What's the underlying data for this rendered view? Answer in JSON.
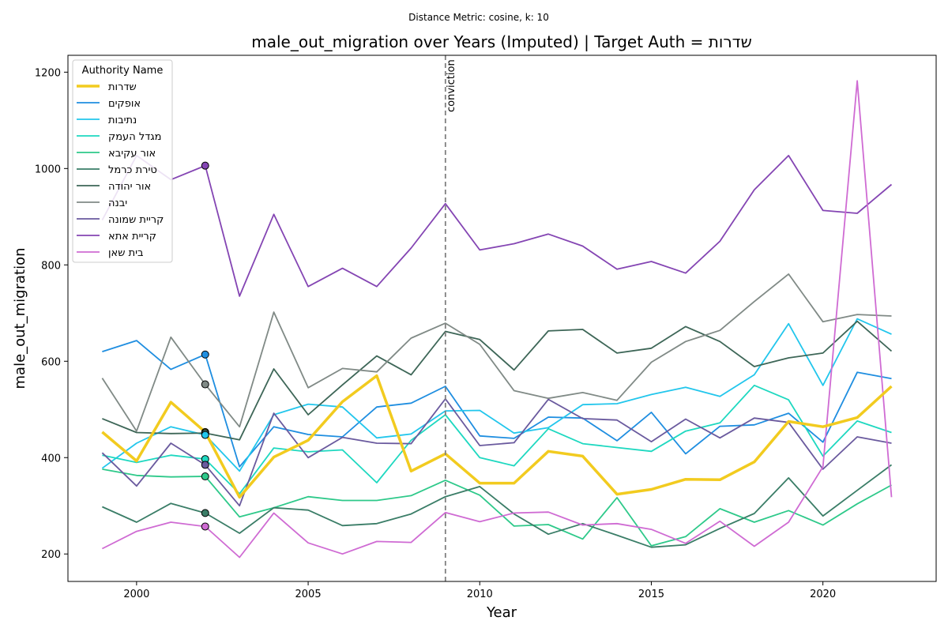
{
  "chart_data": {
    "type": "line",
    "suptitle": "Distance Metric: cosine, k: 10",
    "title": "male_out_migration over Years (Imputed) | Target Auth = שדרות",
    "xlabel": "Year",
    "ylabel": "male_out_migration",
    "xlim": [
      1998,
      2023.3
    ],
    "ylim": [
      143,
      1235
    ],
    "xticks": [
      2000,
      2005,
      2010,
      2015,
      2020
    ],
    "yticks": [
      200,
      400,
      600,
      800,
      1000,
      1200
    ],
    "grid": false,
    "legend": {
      "title": "Authority Name",
      "placement": "top-left"
    },
    "x": [
      1999,
      2000,
      2001,
      2002,
      2003,
      2004,
      2005,
      2006,
      2007,
      2008,
      2009,
      2010,
      2011,
      2012,
      2013,
      2014,
      2015,
      2016,
      2017,
      2018,
      2019,
      2020,
      2021,
      2022
    ],
    "series": [
      {
        "name": "שדרות",
        "color": "#f2cb1f",
        "width": 3.5,
        "target": true,
        "values": [
          453,
          393,
          515,
          453,
          318,
          401,
          436,
          516,
          570,
          372,
          408,
          347,
          347,
          413,
          403,
          324,
          334,
          355,
          354,
          391,
          475,
          464,
          483,
          548
        ]
      },
      {
        "name": "אופקים",
        "color": "#1f8ee0",
        "width": 1.8,
        "values": [
          620,
          643,
          583,
          614,
          381,
          464,
          448,
          443,
          505,
          513,
          548,
          445,
          440,
          484,
          482,
          435,
          494,
          408,
          465,
          468,
          492,
          432,
          577,
          564
        ]
      },
      {
        "name": "נתיבות",
        "color": "#22c6ec",
        "width": 1.8,
        "values": [
          378,
          430,
          464,
          447,
          372,
          489,
          511,
          505,
          441,
          449,
          497,
          498,
          451,
          462,
          510,
          512,
          531,
          546,
          527,
          572,
          678,
          550,
          688,
          656
        ]
      },
      {
        "name": "מגדל העמק",
        "color": "#1ed8c0",
        "width": 1.8,
        "values": [
          405,
          390,
          405,
          397,
          325,
          420,
          412,
          416,
          348,
          436,
          489,
          400,
          383,
          460,
          429,
          421,
          413,
          455,
          472,
          550,
          520,
          403,
          476,
          452
        ]
      },
      {
        "name": "אור עקיבא",
        "color": "#2ec98a",
        "width": 1.8,
        "values": [
          376,
          363,
          360,
          361,
          277,
          296,
          319,
          311,
          311,
          321,
          353,
          322,
          258,
          261,
          231,
          317,
          217,
          236,
          294,
          266,
          290,
          260,
          304,
          343
        ]
      },
      {
        "name": "טירת כרמל",
        "color": "#3a7d67",
        "width": 1.8,
        "values": [
          298,
          266,
          305,
          285,
          243,
          296,
          291,
          259,
          263,
          283,
          319,
          340,
          283,
          241,
          263,
          239,
          214,
          219,
          253,
          284,
          358,
          279,
          332,
          385
        ]
      },
      {
        "name": "אור יהודה",
        "color": "#3d6657",
        "width": 1.8,
        "values": [
          481,
          452,
          450,
          451,
          437,
          584,
          489,
          551,
          611,
          572,
          662,
          645,
          582,
          663,
          666,
          617,
          627,
          672,
          641,
          589,
          607,
          617,
          683,
          621
        ]
      },
      {
        "name": "יבנה",
        "color": "#808a86",
        "width": 1.8,
        "values": [
          565,
          455,
          650,
          552,
          464,
          702,
          545,
          585,
          578,
          648,
          679,
          635,
          539,
          523,
          535,
          519,
          598,
          641,
          664,
          724,
          781,
          682,
          697,
          694
        ]
      },
      {
        "name": "קריית שמונה",
        "color": "#6a5a9e",
        "width": 1.8,
        "values": [
          410,
          341,
          430,
          385,
          300,
          492,
          400,
          442,
          430,
          429,
          522,
          425,
          431,
          521,
          481,
          478,
          433,
          480,
          441,
          482,
          473,
          376,
          443,
          430
        ]
      },
      {
        "name": "קריית אתא",
        "color": "#8445b3",
        "width": 1.8,
        "values": [
          893,
          1027,
          977,
          1006,
          735,
          905,
          755,
          793,
          755,
          835,
          927,
          831,
          844,
          864,
          839,
          791,
          807,
          783,
          849,
          956,
          1027,
          913,
          907,
          967
        ]
      },
      {
        "name": "בית שאן",
        "color": "#cf6bd3",
        "width": 1.8,
        "values": [
          211,
          247,
          266,
          257,
          193,
          285,
          223,
          200,
          226,
          224,
          286,
          267,
          285,
          287,
          260,
          263,
          251,
          222,
          268,
          216,
          266,
          381,
          1182,
          318
        ]
      }
    ],
    "imputed_markers": {
      "x": 2002,
      "points": [
        {
          "series": "קריית אתא",
          "y": 1006,
          "color": "#8445b3"
        },
        {
          "series": "אופקים",
          "y": 614,
          "color": "#1f8ee0"
        },
        {
          "series": "יבנה",
          "y": 552,
          "color": "#808a86"
        },
        {
          "series": "שדרות",
          "y": 453,
          "color": "#f2cb1f"
        },
        {
          "series": "אור יהודה",
          "y": 451,
          "color": "#3d6657"
        },
        {
          "series": "נתיבות",
          "y": 447,
          "color": "#22c6ec"
        },
        {
          "series": "מגדל העמק",
          "y": 397,
          "color": "#1ed8c0"
        },
        {
          "series": "קריית שמונה",
          "y": 385,
          "color": "#6a5a9e"
        },
        {
          "series": "אור עקיבא",
          "y": 361,
          "color": "#2ec98a"
        },
        {
          "series": "טירת כרמל",
          "y": 285,
          "color": "#3a7d67"
        },
        {
          "series": "בית שאן",
          "y": 257,
          "color": "#cf6bd3"
        }
      ]
    },
    "vline": {
      "x": 2009,
      "label": "conviction",
      "color": "#808080"
    }
  }
}
